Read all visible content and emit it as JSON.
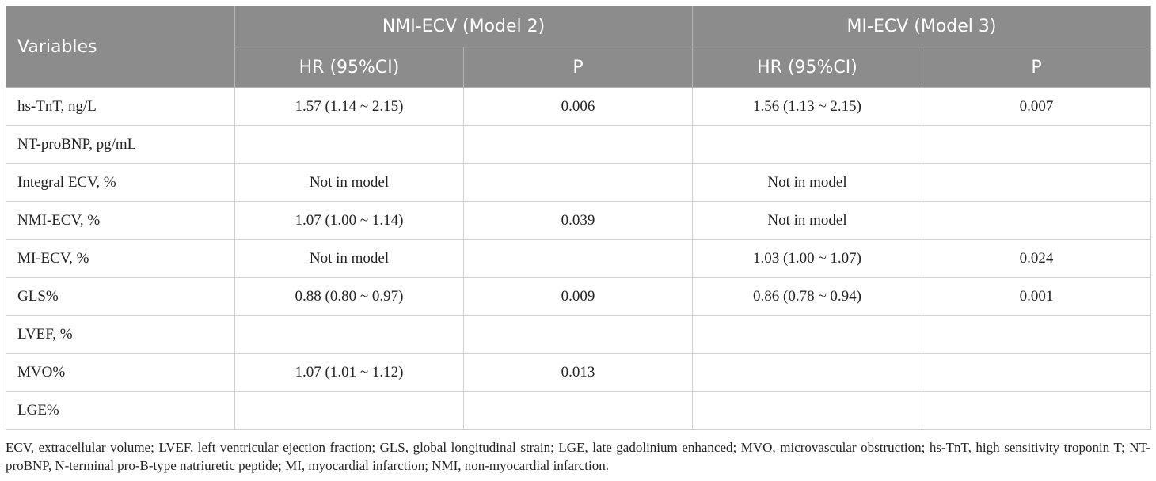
{
  "table": {
    "header": {
      "variables": "Variables",
      "model2": "NMI-ECV (Model 2)",
      "model3": "MI-ECV (Model 3)",
      "hr1": "HR (95%CI)",
      "p1": "P",
      "hr2": "HR (95%CI)",
      "p2": "P"
    },
    "rows": [
      {
        "var": "hs-TnT, ng/L",
        "hr2": "1.57 (1.14 ~ 2.15)",
        "p2": "0.006",
        "hr3": "1.56 (1.13 ~ 2.15)",
        "p3": "0.007"
      },
      {
        "var": "NT-proBNP, pg/mL",
        "hr2": "",
        "p2": "",
        "hr3": "",
        "p3": ""
      },
      {
        "var": "Integral ECV, %",
        "hr2": "Not in model",
        "p2": "",
        "hr3": "Not in model",
        "p3": ""
      },
      {
        "var": "NMI-ECV, %",
        "hr2": "1.07 (1.00 ~ 1.14)",
        "p2": "0.039",
        "hr3": "Not in model",
        "p3": ""
      },
      {
        "var": "MI-ECV, %",
        "hr2": "Not in model",
        "p2": "",
        "hr3": "1.03 (1.00 ~ 1.07)",
        "p3": "0.024"
      },
      {
        "var": "GLS%",
        "hr2": "0.88 (0.80 ~ 0.97)",
        "p2": "0.009",
        "hr3": "0.86 (0.78 ~ 0.94)",
        "p3": "0.001"
      },
      {
        "var": "LVEF, %",
        "hr2": "",
        "p2": "",
        "hr3": "",
        "p3": ""
      },
      {
        "var": "MVO%",
        "hr2": "1.07 (1.01 ~ 1.12)",
        "p2": "0.013",
        "hr3": "",
        "p3": ""
      },
      {
        "var": "LGE%",
        "hr2": "",
        "p2": "",
        "hr3": "",
        "p3": ""
      }
    ]
  },
  "footnote": "ECV, extracellular volume; LVEF, left ventricular ejection fraction; GLS, global longitudinal strain; LGE, late gadolinium enhanced; MVO, microvascular obstruction; hs-TnT, high sensitivity troponin T; NT-proBNP, N-terminal pro-B-type natriuretic peptide; MI, myocardial infarction; NMI, non-myocardial infarction."
}
